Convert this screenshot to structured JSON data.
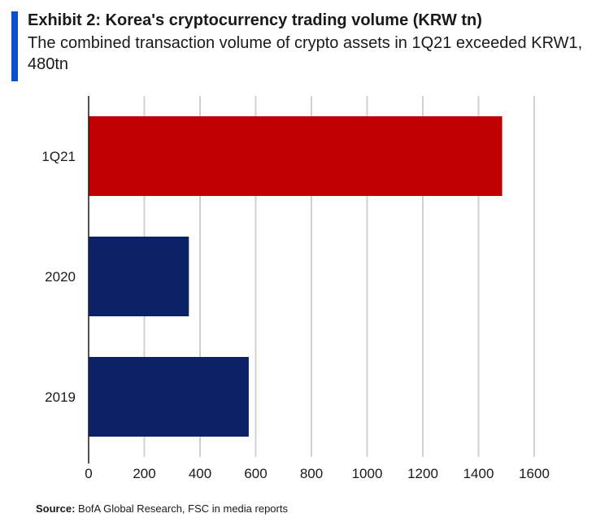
{
  "header": {
    "title": "Exhibit 2: Korea's cryptocurrency trading volume (KRW tn)",
    "subtitle": "The combined transaction volume of crypto assets in 1Q21 exceeded KRW1, 480tn"
  },
  "footer": {
    "source_label": "Source:",
    "source_text": "BofA Global Research, FSC in media reports"
  },
  "colors": {
    "accent": "#0a50c8",
    "highlight_bar": "#c00000",
    "default_bar": "#0b2266",
    "grid": "#d0d0d0",
    "axis": "#1a1a1a"
  },
  "chart_data": {
    "type": "bar",
    "orientation": "horizontal",
    "title": "Exhibit 2: Korea's cryptocurrency trading volume (KRW tn)",
    "xlabel": "",
    "ylabel": "",
    "categories": [
      "1Q21",
      "2020",
      "2019"
    ],
    "values": [
      1485,
      360,
      575
    ],
    "highlight": [
      "1Q21"
    ],
    "xlim": [
      0,
      1600
    ],
    "xticks": [
      0,
      200,
      400,
      600,
      800,
      1000,
      1200,
      1400,
      1600
    ],
    "grid": true,
    "legend": "none"
  }
}
